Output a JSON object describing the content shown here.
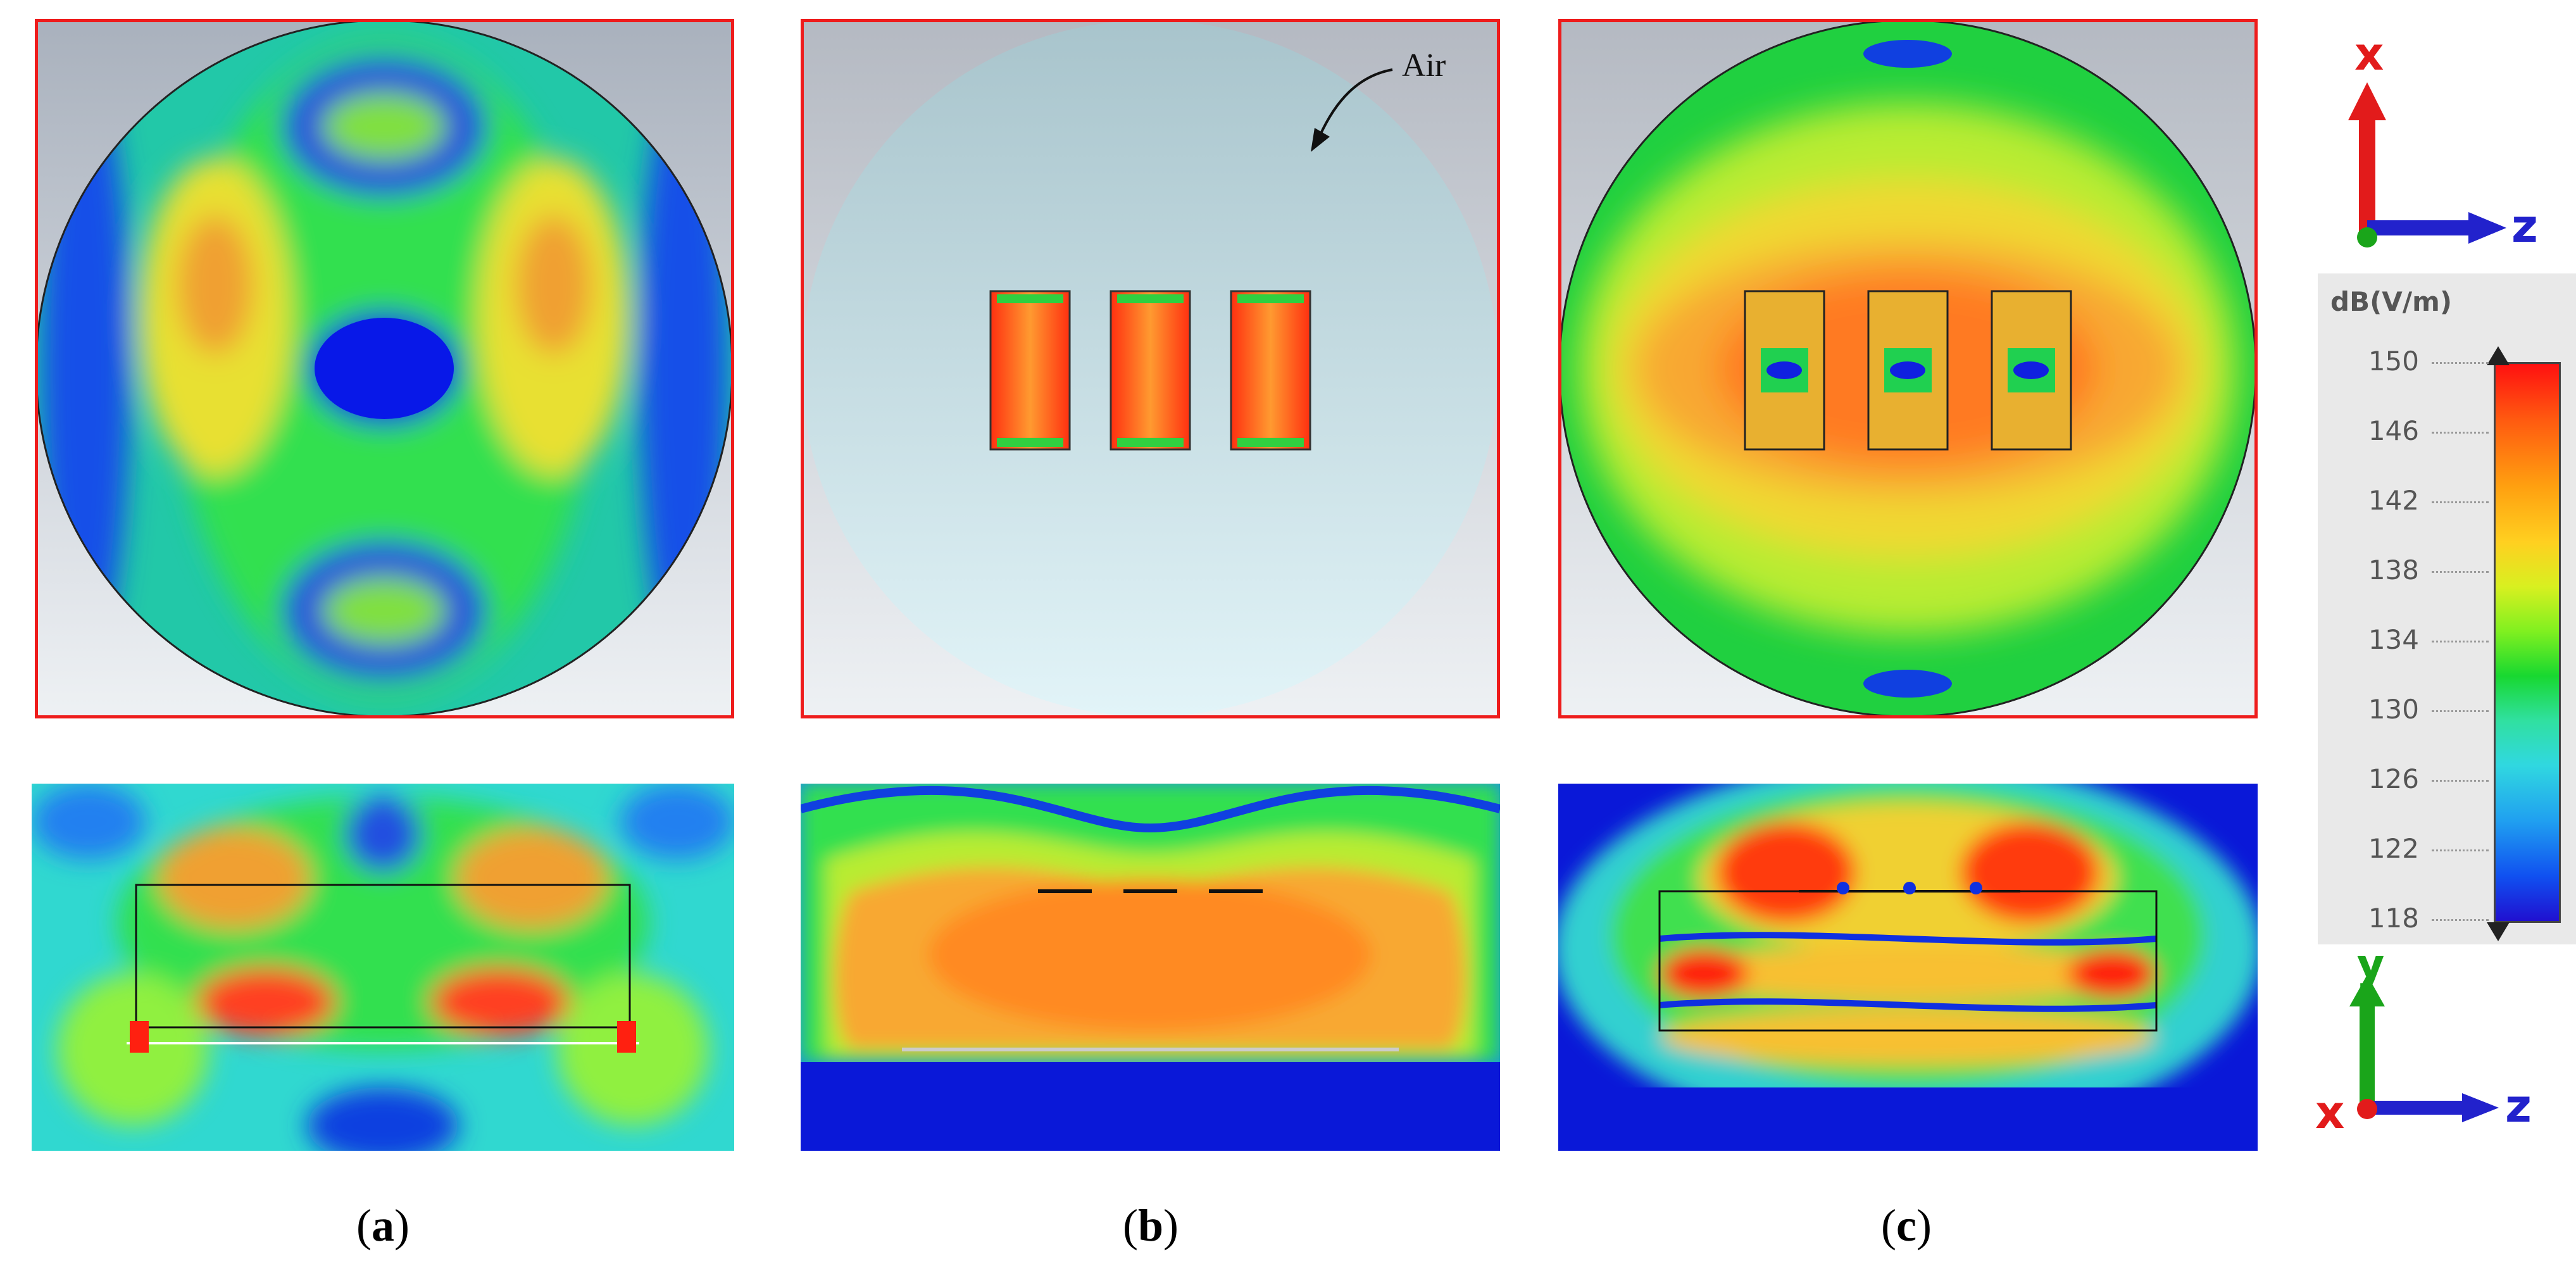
{
  "figure": {
    "captions": [
      {
        "open": "(",
        "letter": "a",
        "close": ")"
      },
      {
        "open": "(",
        "letter": "b",
        "close": ")"
      },
      {
        "open": "(",
        "letter": "c",
        "close": ")"
      }
    ],
    "annotation": "Air"
  },
  "colorbar": {
    "unit": "dB(V/m)",
    "ticks": [
      "150",
      "146",
      "142",
      "138",
      "134",
      "130",
      "126",
      "122",
      "118"
    ],
    "min": 118,
    "max": 150,
    "colors": {
      "high": "#ff1010",
      "mid": "#18d830",
      "low": "#2010d0"
    }
  },
  "axes": {
    "top": {
      "vertical": "x",
      "horizontal": "z",
      "vertical_color": "#e21b1b",
      "horizontal_color": "#2222cc"
    },
    "bottom": {
      "vertical": "y",
      "horizontal": "z",
      "origin": "x",
      "vertical_color": "#1aa51a",
      "horizontal_color": "#2222cc",
      "origin_color": "#e21b1b"
    }
  },
  "colors": {
    "frame": "#ee1c1c",
    "background_sky": "#c9d2d8"
  }
}
